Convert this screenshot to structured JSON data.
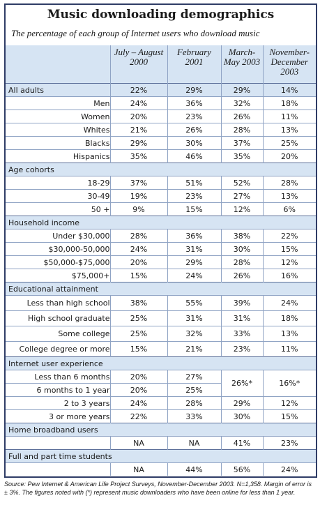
{
  "title": "Music downloading demographics",
  "subtitle": "The percentage of each group of Internet users who download music",
  "columns": [
    "July – August 2000",
    "February 2001",
    "March-May 2003",
    "November-December 2003"
  ],
  "sections": {
    "all_adults": {
      "label": "All adults",
      "values": [
        "22%",
        "29%",
        "29%",
        "14%"
      ],
      "rows": [
        {
          "label": "Men",
          "values": [
            "24%",
            "36%",
            "32%",
            "18%"
          ]
        },
        {
          "label": "Women",
          "values": [
            "20%",
            "23%",
            "26%",
            "11%"
          ]
        },
        {
          "label": "Whites",
          "values": [
            "21%",
            "26%",
            "28%",
            "13%"
          ]
        },
        {
          "label": "Blacks",
          "values": [
            "29%",
            "30%",
            "37%",
            "25%"
          ]
        },
        {
          "label": "Hispanics",
          "values": [
            "35%",
            "46%",
            "35%",
            "20%"
          ]
        }
      ]
    },
    "age": {
      "label": "Age cohorts",
      "rows": [
        {
          "label": "18-29",
          "values": [
            "37%",
            "51%",
            "52%",
            "28%"
          ]
        },
        {
          "label": "30-49",
          "values": [
            "19%",
            "23%",
            "27%",
            "13%"
          ]
        },
        {
          "label": "50 +",
          "values": [
            "9%",
            "15%",
            "12%",
            "6%"
          ]
        }
      ]
    },
    "income": {
      "label": "Household income",
      "rows": [
        {
          "label": "Under $30,000",
          "values": [
            "28%",
            "36%",
            "38%",
            "22%"
          ]
        },
        {
          "label": "$30,000-50,000",
          "values": [
            "24%",
            "31%",
            "30%",
            "15%"
          ]
        },
        {
          "label": "$50,000-$75,000",
          "values": [
            "20%",
            "29%",
            "28%",
            "12%"
          ]
        },
        {
          "label": "$75,000+",
          "values": [
            "15%",
            "24%",
            "26%",
            "16%"
          ]
        }
      ]
    },
    "education": {
      "label": "Educational attainment",
      "rows": [
        {
          "label": "Less than high school",
          "values": [
            "38%",
            "55%",
            "39%",
            "24%"
          ]
        },
        {
          "label": "High school graduate",
          "values": [
            "25%",
            "31%",
            "31%",
            "18%"
          ]
        },
        {
          "label": "Some college",
          "values": [
            "25%",
            "32%",
            "33%",
            "13%"
          ]
        },
        {
          "label": "College degree or more",
          "values": [
            "15%",
            "21%",
            "23%",
            "11%"
          ]
        }
      ]
    },
    "experience": {
      "label": "Internet user experience",
      "rows": [
        {
          "label": "Less than 6 months",
          "values": [
            "20%",
            "27%"
          ]
        },
        {
          "label": "6 months to 1 year",
          "values": [
            "20%",
            "25%"
          ]
        },
        {
          "label": "2 to 3 years",
          "values": [
            "24%",
            "28%",
            "29%",
            "12%"
          ]
        },
        {
          "label": "3 or more years",
          "values": [
            "22%",
            "33%",
            "30%",
            "15%"
          ]
        }
      ],
      "merged_values": [
        "26%*",
        "16%*"
      ]
    },
    "broadband": {
      "label": "Home broadband users",
      "values": [
        "NA",
        "NA",
        "41%",
        "23%"
      ]
    },
    "students": {
      "label": "Full and part time students",
      "values": [
        "NA",
        "44%",
        "56%",
        "24%"
      ]
    }
  },
  "source": "Source: Pew Internet & American Life Project Surveys, November-December 2003. N=1,358. Margin of error is ± 3%. The figures noted with (*) represent music downloaders who have been online for less than 1 year.",
  "colors": {
    "header_bg": "#d6e4f3",
    "border": "#2f3c66",
    "grid": "#8fa3c4"
  }
}
